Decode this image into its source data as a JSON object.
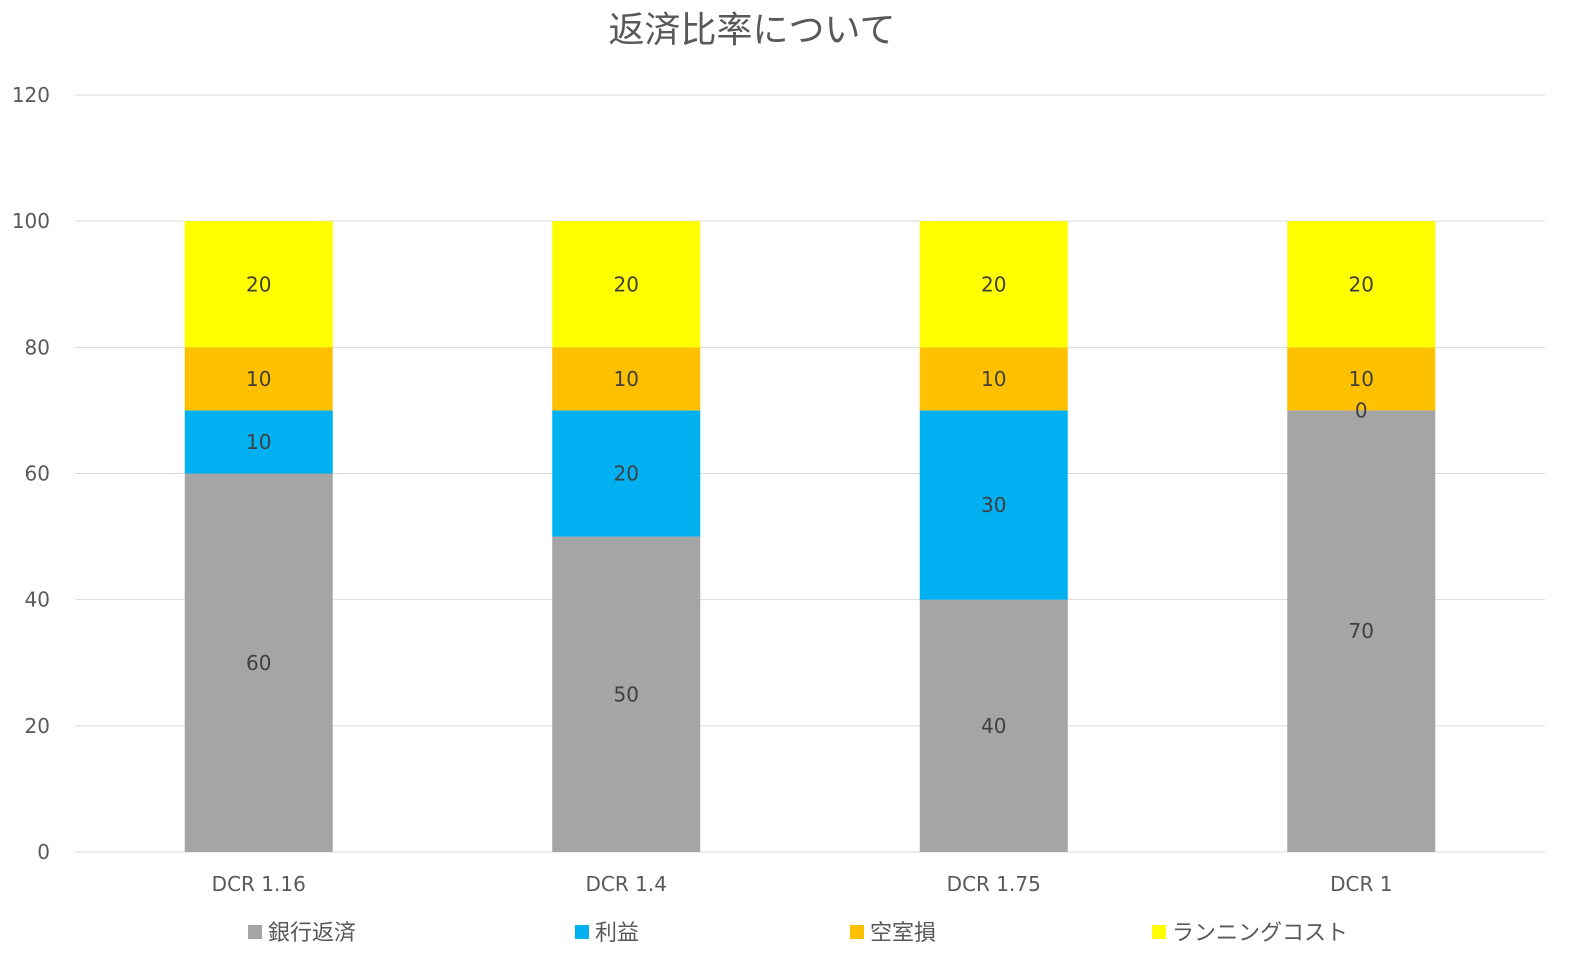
{
  "chart_data": {
    "type": "bar",
    "stacked": true,
    "title": "返済比率について",
    "categories": [
      "DCR 1.16",
      "DCR 1.4",
      "DCR 1.75",
      "DCR 1"
    ],
    "series": [
      {
        "name": "銀行返済",
        "values": [
          60,
          50,
          40,
          70
        ],
        "color": "#a5a5a5"
      },
      {
        "name": "利益",
        "values": [
          10,
          20,
          30,
          0
        ],
        "color": "#00b0f0"
      },
      {
        "name": "空室損",
        "values": [
          10,
          10,
          10,
          10
        ],
        "color": "#ffc000"
      },
      {
        "name": "ランニングコスト",
        "values": [
          20,
          20,
          20,
          20
        ],
        "color": "#ffff00"
      }
    ],
    "ylim": [
      0,
      120
    ],
    "yticks": [
      0,
      20,
      40,
      60,
      80,
      100,
      120
    ],
    "grid": true,
    "legend_position": "bottom",
    "data_labels": true
  }
}
